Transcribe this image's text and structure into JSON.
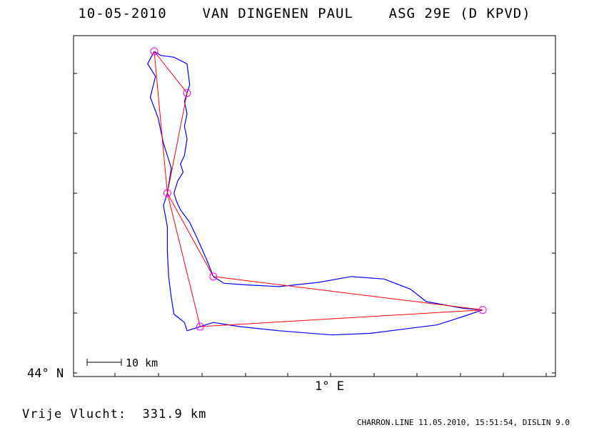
{
  "header": {
    "title": "10-05-2010    VAN DINGENEN PAUL    ASG 29E (D KPVD)"
  },
  "axes": {
    "lat_label": "44° N",
    "lon_label": "1° E"
  },
  "scale": {
    "label": "10 km"
  },
  "flight": {
    "free_flight_label": "Vrije Vlucht:  331.9 km"
  },
  "footer": {
    "text": "CHARRON.LINE 11.05.2010, 15:51:54, DISLIN 9.0"
  },
  "colors": {
    "track": "#0000ff",
    "task": "#ff0000",
    "turnpoint": "#ff00ff",
    "frame": "#000000"
  },
  "chart_data": {
    "type": "line",
    "title": "10-05-2010    VAN DINGENEN PAUL    ASG 29E (D KPVD)",
    "xlabel": "1° E",
    "ylabel": "44° N",
    "grid": false,
    "series": [
      {
        "kind": "task",
        "points": [
          [
            0.505,
            44.53
          ],
          [
            0.53,
            44.48
          ],
          [
            0.515,
            44.36
          ],
          [
            0.55,
            44.26
          ],
          [
            0.755,
            44.22
          ],
          [
            0.54,
            44.2
          ],
          [
            0.515,
            44.36
          ],
          [
            0.505,
            44.53
          ]
        ]
      },
      {
        "kind": "track",
        "points": [
          [
            0.505,
            44.53
          ],
          [
            0.51,
            44.525
          ],
          [
            0.52,
            44.523
          ],
          [
            0.53,
            44.515
          ],
          [
            0.532,
            44.49
          ],
          [
            0.528,
            44.47
          ],
          [
            0.53,
            44.455
          ],
          [
            0.528,
            44.44
          ],
          [
            0.53,
            44.425
          ],
          [
            0.528,
            44.405
          ],
          [
            0.525,
            44.395
          ],
          [
            0.527,
            44.385
          ],
          [
            0.523,
            44.375
          ],
          [
            0.52,
            44.36
          ],
          [
            0.522,
            44.35
          ],
          [
            0.525,
            44.34
          ],
          [
            0.532,
            44.325
          ],
          [
            0.538,
            44.305
          ],
          [
            0.545,
            44.28
          ],
          [
            0.55,
            44.26
          ],
          [
            0.558,
            44.252
          ],
          [
            0.575,
            44.25
          ],
          [
            0.6,
            44.248
          ],
          [
            0.63,
            44.253
          ],
          [
            0.655,
            44.26
          ],
          [
            0.68,
            44.257
          ],
          [
            0.7,
            44.245
          ],
          [
            0.712,
            44.23
          ],
          [
            0.74,
            44.222
          ],
          [
            0.755,
            44.22
          ],
          [
            0.74,
            44.212
          ],
          [
            0.72,
            44.202
          ],
          [
            0.7,
            44.198
          ],
          [
            0.67,
            44.192
          ],
          [
            0.64,
            44.19
          ],
          [
            0.6,
            44.195
          ],
          [
            0.57,
            44.2
          ],
          [
            0.55,
            44.205
          ],
          [
            0.54,
            44.2
          ],
          [
            0.53,
            44.195
          ],
          [
            0.528,
            44.205
          ],
          [
            0.52,
            44.215
          ],
          [
            0.518,
            44.235
          ],
          [
            0.516,
            44.26
          ],
          [
            0.515,
            44.29
          ],
          [
            0.515,
            44.32
          ],
          [
            0.512,
            44.345
          ],
          [
            0.515,
            44.36
          ],
          [
            0.518,
            44.39
          ],
          [
            0.512,
            44.42
          ],
          [
            0.508,
            44.45
          ],
          [
            0.502,
            44.475
          ],
          [
            0.506,
            44.5
          ],
          [
            0.5,
            44.515
          ],
          [
            0.505,
            44.53
          ]
        ]
      }
    ],
    "turnpoints": [
      [
        0.505,
        44.53
      ],
      [
        0.53,
        44.48
      ],
      [
        0.515,
        44.36
      ],
      [
        0.55,
        44.26
      ],
      [
        0.755,
        44.22
      ],
      [
        0.54,
        44.2
      ]
    ],
    "scale_bar_km": 10
  }
}
